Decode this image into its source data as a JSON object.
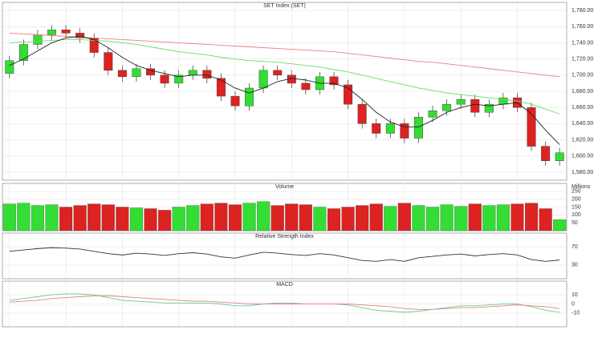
{
  "chart_data": [
    {
      "type": "candlestick",
      "title": "SET Index (SET)",
      "up_color": "#33dd33",
      "down_color": "#dd2222",
      "open": [
        1702,
        1718,
        1738,
        1750,
        1756,
        1752,
        1746,
        1728,
        1706,
        1698,
        1708,
        1700,
        1690,
        1700,
        1706,
        1696,
        1674,
        1662,
        1684,
        1706,
        1700,
        1690,
        1682,
        1698,
        1688,
        1664,
        1640,
        1628,
        1640,
        1622,
        1648,
        1656,
        1664,
        1670,
        1654,
        1664,
        1672,
        1660,
        1612,
        1594
      ],
      "high": [
        1724,
        1744,
        1756,
        1762,
        1762,
        1758,
        1752,
        1734,
        1712,
        1714,
        1714,
        1706,
        1706,
        1712,
        1712,
        1702,
        1680,
        1690,
        1712,
        1712,
        1706,
        1696,
        1704,
        1704,
        1694,
        1670,
        1646,
        1646,
        1646,
        1654,
        1662,
        1670,
        1676,
        1676,
        1670,
        1678,
        1678,
        1666,
        1618,
        1610
      ],
      "low": [
        1696,
        1712,
        1732,
        1744,
        1746,
        1740,
        1722,
        1700,
        1692,
        1692,
        1694,
        1684,
        1684,
        1694,
        1690,
        1668,
        1656,
        1656,
        1678,
        1694,
        1684,
        1676,
        1676,
        1682,
        1658,
        1634,
        1622,
        1622,
        1616,
        1616,
        1642,
        1650,
        1658,
        1648,
        1648,
        1658,
        1654,
        1606,
        1588,
        1588
      ],
      "close": [
        1718,
        1738,
        1750,
        1756,
        1752,
        1746,
        1728,
        1706,
        1698,
        1708,
        1700,
        1690,
        1700,
        1706,
        1696,
        1674,
        1662,
        1684,
        1706,
        1700,
        1690,
        1682,
        1698,
        1688,
        1664,
        1640,
        1628,
        1640,
        1622,
        1648,
        1656,
        1664,
        1670,
        1654,
        1664,
        1672,
        1660,
        1612,
        1594,
        1604
      ],
      "series": [
        {
          "color": "#e88080",
          "values": [
            1752,
            1751,
            1750,
            1749,
            1748,
            1747,
            1746,
            1745,
            1744,
            1743,
            1742,
            1741,
            1740,
            1739,
            1738,
            1737,
            1736,
            1735,
            1734,
            1733,
            1732,
            1731,
            1730,
            1729,
            1727,
            1725,
            1723,
            1721,
            1719,
            1717,
            1716,
            1714,
            1712,
            1710,
            1708,
            1706,
            1704,
            1702,
            1700,
            1698
          ]
        },
        {
          "color": "#66dd66",
          "values": [
            1740,
            1741,
            1742,
            1743,
            1744,
            1744,
            1743,
            1742,
            1740,
            1738,
            1735,
            1732,
            1729,
            1727,
            1725,
            1722,
            1720,
            1718,
            1717,
            1716,
            1714,
            1712,
            1710,
            1707,
            1704,
            1700,
            1696,
            1692,
            1688,
            1684,
            1681,
            1678,
            1676,
            1674,
            1672,
            1670,
            1668,
            1664,
            1658,
            1652
          ]
        },
        {
          "color": "#222222",
          "values": [
            1712,
            1720,
            1730,
            1740,
            1746,
            1748,
            1744,
            1734,
            1722,
            1712,
            1706,
            1702,
            1698,
            1700,
            1700,
            1694,
            1684,
            1678,
            1684,
            1692,
            1696,
            1694,
            1690,
            1690,
            1684,
            1670,
            1654,
            1642,
            1636,
            1636,
            1644,
            1654,
            1660,
            1664,
            1662,
            1664,
            1666,
            1652,
            1632,
            1614
          ]
        }
      ],
      "ylim": [
        1570,
        1790
      ],
      "yticks": [
        {
          "value": 1580,
          "label": "1,580.00"
        },
        {
          "value": 1600,
          "label": "1,600.00"
        },
        {
          "value": 1620,
          "label": "1,620.00"
        },
        {
          "value": 1640,
          "label": "1,640.00"
        },
        {
          "value": 1660,
          "label": "1,660.00"
        },
        {
          "value": 1680,
          "label": "1,680.00"
        },
        {
          "value": 1700,
          "label": "1,700.00"
        },
        {
          "value": 1720,
          "label": "1,720.00"
        },
        {
          "value": 1740,
          "label": "1,740.00"
        },
        {
          "value": 1760,
          "label": "1,760.00"
        },
        {
          "value": 1780,
          "label": "1,780.00"
        }
      ],
      "grid": true
    },
    {
      "type": "bar",
      "title": "Volume",
      "y_label": "Millions",
      "up_color": "#33dd33",
      "down_color": "#dd2222",
      "values": [
        170,
        175,
        160,
        165,
        150,
        160,
        170,
        165,
        150,
        145,
        140,
        130,
        150,
        160,
        170,
        175,
        165,
        175,
        185,
        160,
        170,
        165,
        150,
        140,
        150,
        160,
        170,
        155,
        175,
        160,
        150,
        165,
        155,
        170,
        160,
        165,
        170,
        175,
        140,
        70
      ],
      "ylim": [
        0,
        300
      ],
      "yticks": [
        50,
        100,
        150,
        200,
        250
      ],
      "grid": true
    },
    {
      "type": "line",
      "title": "Relative Strength Index",
      "series": [
        {
          "color": "#333333",
          "values": [
            60,
            63,
            66,
            68,
            67,
            65,
            60,
            55,
            52,
            56,
            54,
            51,
            55,
            57,
            54,
            48,
            45,
            52,
            58,
            56,
            53,
            51,
            55,
            52,
            46,
            40,
            38,
            42,
            38,
            46,
            49,
            52,
            54,
            50,
            53,
            55,
            52,
            42,
            38,
            41
          ]
        }
      ],
      "ylim": [
        0,
        100
      ],
      "yticks": [
        30,
        70
      ],
      "grid": true
    },
    {
      "type": "line",
      "title": "MACD",
      "series": [
        {
          "color": "#66cc99",
          "values": [
            4,
            6,
            8,
            10,
            11,
            11,
            10,
            7,
            4,
            3,
            2,
            1,
            1,
            1,
            1,
            0,
            -2,
            -2,
            0,
            1,
            1,
            0,
            0,
            0,
            -1,
            -4,
            -7,
            -8,
            -9,
            -8,
            -6,
            -4,
            -2,
            -2,
            -1,
            0,
            0,
            -3,
            -7,
            -9
          ]
        },
        {
          "color": "#e88080",
          "values": [
            2,
            3,
            4,
            6,
            7,
            8,
            9,
            9,
            8,
            7,
            6,
            5,
            4,
            3,
            3,
            2,
            1,
            0,
            0,
            0,
            0,
            0,
            0,
            0,
            0,
            -1,
            -2,
            -3,
            -5,
            -6,
            -6,
            -5,
            -4,
            -4,
            -3,
            -2,
            -1,
            -2,
            -3,
            -5
          ]
        }
      ],
      "ylim": [
        -25,
        25
      ],
      "yticks": [
        -10,
        0,
        10
      ],
      "grid": true
    }
  ]
}
